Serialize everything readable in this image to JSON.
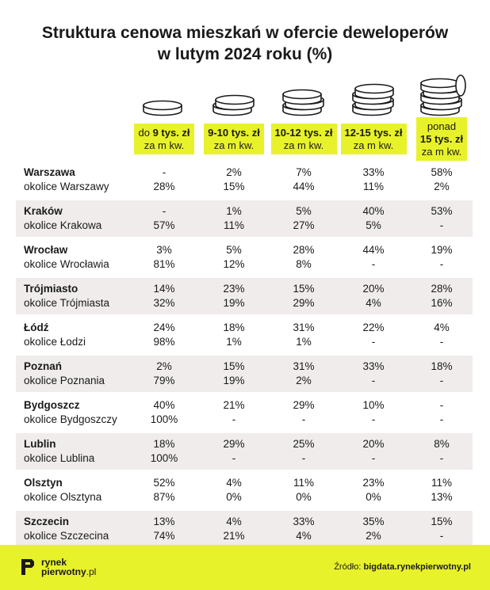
{
  "title_line1": "Struktura cenowa mieszkań w ofercie deweloperów",
  "title_line2": "w lutym 2024 roku (%)",
  "columns": [
    {
      "prefix": "do",
      "bold": "9 tys. zł",
      "line2": "za m kw."
    },
    {
      "prefix": "",
      "bold": "9-10 tys. zł",
      "line2": "za m kw."
    },
    {
      "prefix": "",
      "bold": "10-12 tys. zł",
      "line2": "za m kw."
    },
    {
      "prefix": "",
      "bold": "12-15 tys. zł",
      "line2": "za m kw."
    },
    {
      "line1": "ponad",
      "bold": "15 tys. zł",
      "line2": "za m kw."
    }
  ],
  "chart_data": {
    "type": "table",
    "title": "Struktura cenowa mieszkań w ofercie deweloperów w lutym 2024 roku (%)",
    "columns": [
      "do 9 tys. zł za m kw.",
      "9-10 tys. zł za m kw.",
      "10-12 tys. zł za m kw.",
      "12-15 tys. zł za m kw.",
      "ponad 15 tys. zł za m kw."
    ],
    "rows": [
      {
        "city": "Warszawa",
        "suburb": "okolice Warszawy",
        "city_values": [
          "-",
          "2%",
          "7%",
          "33%",
          "58%"
        ],
        "suburb_values": [
          "28%",
          "15%",
          "44%",
          "11%",
          "2%"
        ]
      },
      {
        "city": "Kraków",
        "suburb": "okolice Krakowa",
        "city_values": [
          "-",
          "1%",
          "5%",
          "40%",
          "53%"
        ],
        "suburb_values": [
          "57%",
          "11%",
          "27%",
          "5%",
          "-"
        ]
      },
      {
        "city": "Wrocław",
        "suburb": "okolice Wrocławia",
        "city_values": [
          "3%",
          "5%",
          "28%",
          "44%",
          "19%"
        ],
        "suburb_values": [
          "81%",
          "12%",
          "8%",
          "-",
          "-"
        ]
      },
      {
        "city": "Trójmiasto",
        "suburb": "okolice Trójmiasta",
        "city_values": [
          "14%",
          "23%",
          "15%",
          "20%",
          "28%"
        ],
        "suburb_values": [
          "32%",
          "19%",
          "29%",
          "4%",
          "16%"
        ]
      },
      {
        "city": "Łódź",
        "suburb": "okolice Łodzi",
        "city_values": [
          "24%",
          "18%",
          "31%",
          "22%",
          "4%"
        ],
        "suburb_values": [
          "98%",
          "1%",
          "1%",
          "-",
          "-"
        ]
      },
      {
        "city": "Poznań",
        "suburb": "okolice Poznania",
        "city_values": [
          "2%",
          "15%",
          "31%",
          "33%",
          "18%"
        ],
        "suburb_values": [
          "79%",
          "19%",
          "2%",
          "-",
          "-"
        ]
      },
      {
        "city": "Bydgoszcz",
        "suburb": "okolice Bydgoszczy",
        "city_values": [
          "40%",
          "21%",
          "29%",
          "10%",
          "-"
        ],
        "suburb_values": [
          "100%",
          "-",
          "-",
          "-",
          "-"
        ]
      },
      {
        "city": "Lublin",
        "suburb": "okolice Lublina",
        "city_values": [
          "18%",
          "29%",
          "25%",
          "20%",
          "8%"
        ],
        "suburb_values": [
          "100%",
          "-",
          "-",
          "-",
          "-"
        ]
      },
      {
        "city": "Olsztyn",
        "suburb": "okolice Olsztyna",
        "city_values": [
          "52%",
          "4%",
          "11%",
          "23%",
          "11%"
        ],
        "suburb_values": [
          "87%",
          "0%",
          "0%",
          "0%",
          "13%"
        ]
      },
      {
        "city": "Szczecin",
        "suburb": "okolice Szczecina",
        "city_values": [
          "13%",
          "4%",
          "33%",
          "35%",
          "15%"
        ],
        "suburb_values": [
          "74%",
          "21%",
          "4%",
          "2%",
          "-"
        ]
      }
    ]
  },
  "footer": {
    "logo_line1": "rynek",
    "logo_line2": "pierwotny",
    "logo_tld": ".pl",
    "source_label": "Źródło:",
    "source_value": "bigdata.rynekpierwotny.pl"
  },
  "colors": {
    "accent": "#e8f22a",
    "row_shade": "#efeceb",
    "text": "#1a1a1a"
  },
  "icons": [
    "coin-stack-1-icon",
    "coin-stack-2-icon",
    "coin-stack-3-icon",
    "coin-stack-4-icon",
    "coin-stack-5-icon",
    "rynekpierwotny-logo-icon"
  ]
}
